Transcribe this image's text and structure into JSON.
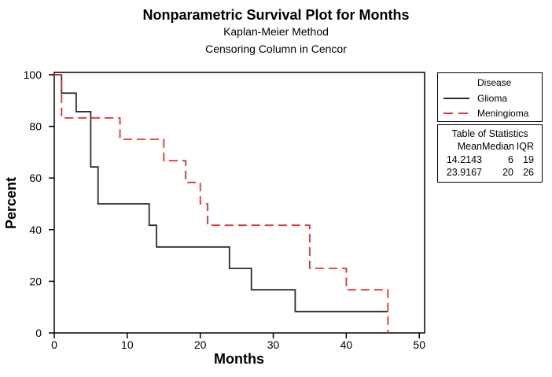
{
  "figure": {
    "title": "Nonparametric Survival Plot for Months",
    "subtitle1": "Kaplan-Meier Method",
    "subtitle2": "Censoring Column in Cencor"
  },
  "legend": {
    "title": "Disease",
    "items": [
      {
        "label": "Glioma",
        "line_style": "solid",
        "color": "#2b2b2b"
      },
      {
        "label": "Meningioma",
        "line_style": "dashed",
        "color": "#e63232"
      }
    ]
  },
  "stats": {
    "title": "Table of Statistics",
    "columns": {
      "mean": "Mean",
      "median": "Median",
      "iqr": "IQR"
    },
    "rows": [
      {
        "mean": "14.2143",
        "median": "6",
        "iqr": "19"
      },
      {
        "mean": "23.9167",
        "median": "20",
        "iqr": "26"
      }
    ]
  },
  "chart_data": {
    "type": "line",
    "subtype": "kaplan-meier-step",
    "title": "Nonparametric Survival Plot for Months",
    "xlabel": "Months",
    "ylabel": "Percent",
    "xlim": [
      0,
      50.7
    ],
    "ylim": [
      0,
      100
    ],
    "x_ticks": [
      0,
      10,
      20,
      30,
      40,
      50
    ],
    "y_ticks": [
      0,
      20,
      40,
      60,
      80,
      100
    ],
    "grid": false,
    "legend_position": "outside-right",
    "series": [
      {
        "name": "Glioma",
        "color": "#2b2b2b",
        "dash": null,
        "points": [
          [
            0,
            100
          ],
          [
            1,
            100
          ],
          [
            1,
            92.9
          ],
          [
            3,
            92.9
          ],
          [
            3,
            85.7
          ],
          [
            5,
            85.7
          ],
          [
            5,
            64.3
          ],
          [
            6,
            64.3
          ],
          [
            6,
            50
          ],
          [
            13,
            50
          ],
          [
            13,
            41.7
          ],
          [
            14,
            41.7
          ],
          [
            14,
            33.3
          ],
          [
            24,
            33.3
          ],
          [
            24,
            25
          ],
          [
            27,
            25
          ],
          [
            27,
            16.7
          ],
          [
            33,
            16.7
          ],
          [
            33,
            8.3
          ],
          [
            45.7,
            8.3
          ]
        ]
      },
      {
        "name": "Meningioma",
        "color": "#e63232",
        "dash": [
          11,
          6
        ],
        "points": [
          [
            0,
            100
          ],
          [
            1,
            100
          ],
          [
            1,
            83.3
          ],
          [
            9,
            83.3
          ],
          [
            9,
            75
          ],
          [
            15,
            75
          ],
          [
            15,
            66.7
          ],
          [
            18,
            66.7
          ],
          [
            18,
            58.3
          ],
          [
            20,
            58.3
          ],
          [
            20,
            50
          ],
          [
            21,
            50
          ],
          [
            21,
            41.7
          ],
          [
            35,
            41.7
          ],
          [
            35,
            25
          ],
          [
            40,
            25
          ],
          [
            40,
            16.7
          ],
          [
            45.7,
            16.7
          ],
          [
            45.7,
            0
          ]
        ]
      }
    ]
  }
}
